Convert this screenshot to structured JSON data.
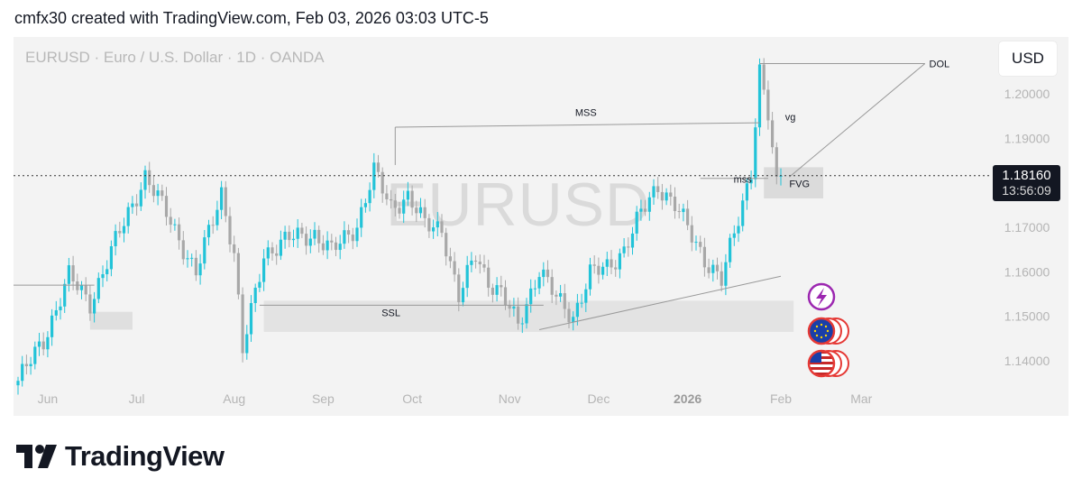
{
  "header": {
    "caption": "cmfx30 created with TradingView.com, Feb 03, 2026 03:03 UTC-5"
  },
  "chart_header": {
    "symbol_line": "EURUSD · Euro / U.S. Dollar · 1D · OANDA",
    "watermark": "EURUSD",
    "currency_button": "USD"
  },
  "price_tag": {
    "price": "1.18160",
    "countdown": "13:56:09"
  },
  "footer": {
    "brand": "TradingView"
  },
  "colors": {
    "up": "#22c3d8",
    "down": "#a8a8a8",
    "zone": "#d5d5d5",
    "line": "#999999",
    "priceline": "#333333"
  },
  "chart_data": {
    "type": "candlestick",
    "symbol": "EURUSD",
    "timeframe": "1D",
    "ylim": [
      1.135,
      1.219
    ],
    "y_ticks": [
      "1.14000",
      "1.15000",
      "1.16000",
      "1.17000",
      "1.18000",
      "1.19000",
      "1.20000"
    ],
    "x_ticks": [
      {
        "label": "Jun",
        "bar": 7
      },
      {
        "label": "Jul",
        "bar": 28
      },
      {
        "label": "Aug",
        "bar": 51
      },
      {
        "label": "Sep",
        "bar": 72
      },
      {
        "label": "Oct",
        "bar": 93
      },
      {
        "label": "Nov",
        "bar": 116
      },
      {
        "label": "Dec",
        "bar": 137
      },
      {
        "label": "2026",
        "bar": 158
      },
      {
        "label": "Feb",
        "bar": 180
      },
      {
        "label": "Mar",
        "bar": 199
      }
    ],
    "last_price": 1.1816,
    "keypoints": [
      [
        0,
        1.1355
      ],
      [
        6,
        1.1445
      ],
      [
        12,
        1.159
      ],
      [
        17,
        1.153
      ],
      [
        24,
        1.169
      ],
      [
        30,
        1.1815
      ],
      [
        36,
        1.1715
      ],
      [
        42,
        1.1595
      ],
      [
        48,
        1.178
      ],
      [
        51,
        1.164
      ],
      [
        53,
        1.142
      ],
      [
        58,
        1.164
      ],
      [
        64,
        1.1675
      ],
      [
        70,
        1.1685
      ],
      [
        74,
        1.1645
      ],
      [
        80,
        1.1705
      ],
      [
        84,
        1.1825
      ],
      [
        88,
        1.1745
      ],
      [
        92,
        1.177
      ],
      [
        96,
        1.1705
      ],
      [
        100,
        1.17
      ],
      [
        104,
        1.154
      ],
      [
        108,
        1.164
      ],
      [
        111,
        1.158
      ],
      [
        114,
        1.155
      ],
      [
        118,
        1.148
      ],
      [
        123,
        1.1605
      ],
      [
        127,
        1.154
      ],
      [
        131,
        1.15
      ],
      [
        135,
        1.1595
      ],
      [
        139,
        1.161
      ],
      [
        143,
        1.165
      ],
      [
        147,
        1.173
      ],
      [
        151,
        1.1795
      ],
      [
        155,
        1.175
      ],
      [
        159,
        1.168
      ],
      [
        162,
        1.163
      ],
      [
        166,
        1.158
      ],
      [
        170,
        1.172
      ],
      [
        173,
        1.183
      ],
      [
        175,
        1.205
      ],
      [
        177,
        1.195
      ],
      [
        179,
        1.179
      ],
      [
        180,
        1.1816
      ]
    ],
    "annotations": [
      {
        "label": "DOL",
        "type": "level",
        "price": 1.2068
      },
      {
        "label": "MSS",
        "type": "level",
        "price": 1.1925
      },
      {
        "label": "vg",
        "type": "text",
        "price": 1.1935
      },
      {
        "label": "mss",
        "type": "level",
        "price": 1.181
      },
      {
        "label": "FVG",
        "type": "zone",
        "price_range": [
          1.1765,
          1.1835
        ]
      },
      {
        "label": "SSL",
        "type": "zone",
        "price_range": [
          1.1465,
          1.1535
        ]
      }
    ]
  }
}
